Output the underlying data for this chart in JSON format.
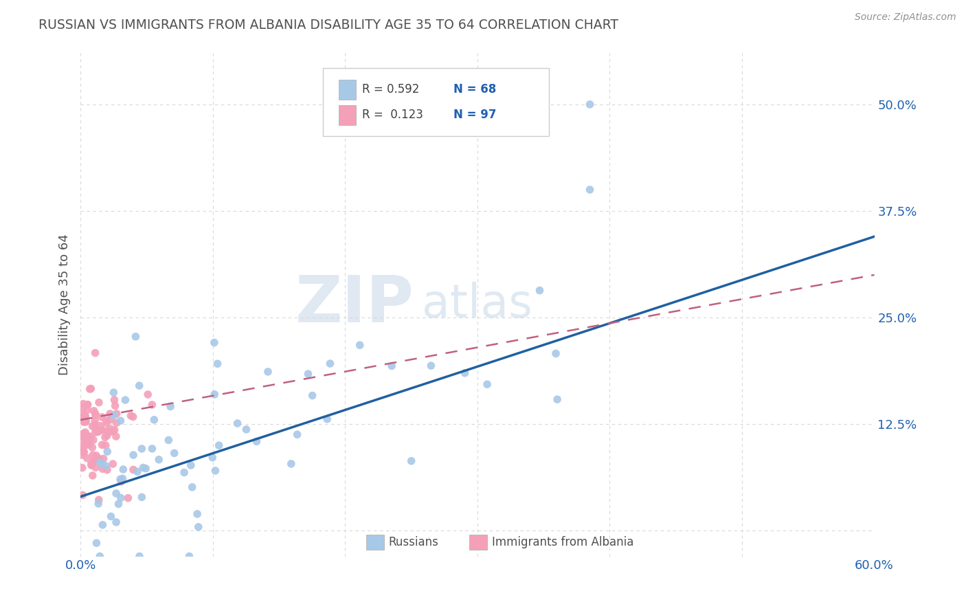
{
  "title": "RUSSIAN VS IMMIGRANTS FROM ALBANIA DISABILITY AGE 35 TO 64 CORRELATION CHART",
  "source": "Source: ZipAtlas.com",
  "ylabel": "Disability Age 35 to 64",
  "xlim": [
    0.0,
    0.6
  ],
  "ylim": [
    -0.03,
    0.56
  ],
  "russian_R": 0.592,
  "russian_N": 68,
  "albania_R": 0.123,
  "albania_N": 97,
  "russian_color": "#a8c8e8",
  "albania_color": "#f4a0b8",
  "russian_line_color": "#2060a0",
  "albania_line_color": "#c06080",
  "watermark_zip": "ZIP",
  "watermark_atlas": "atlas",
  "background_color": "#ffffff",
  "grid_color": "#d8d8d8",
  "title_color": "#505050",
  "axis_label_color": "#2060b0",
  "legend_text_color": "#404040",
  "legend_val_color": "#2060b0"
}
